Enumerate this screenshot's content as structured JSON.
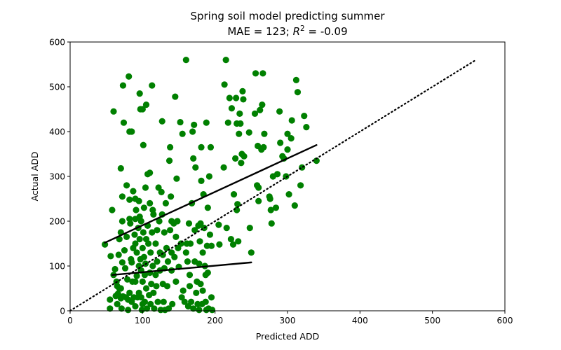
{
  "chart_data": {
    "type": "scatter",
    "title": "Spring soil model predicting summer",
    "subtitle_prefix": "MAE = 123; ",
    "subtitle_r": "R",
    "subtitle_sup": "2",
    "subtitle_suffix": " = -0.09",
    "xlabel": "Predicted ADD",
    "ylabel": "Actual ADD",
    "xlim": [
      0,
      600
    ],
    "ylim": [
      0,
      600
    ],
    "xticks": [
      0,
      100,
      200,
      300,
      400,
      500,
      600
    ],
    "yticks": [
      0,
      100,
      200,
      300,
      400,
      500,
      600
    ],
    "grid": false,
    "point_color": "#008000",
    "line_color": "#000000",
    "identity_line": {
      "style": "dotted",
      "points": [
        [
          0,
          0
        ],
        [
          560,
          560
        ]
      ]
    },
    "fit_lines": [
      {
        "style": "solid",
        "points": [
          [
            48,
            152
          ],
          [
            340,
            370
          ]
        ]
      },
      {
        "style": "solid",
        "points": [
          [
            58,
            80
          ],
          [
            250,
            108
          ]
        ]
      }
    ],
    "points": [
      [
        48,
        148
      ],
      [
        55,
        25
      ],
      [
        55,
        5
      ],
      [
        56,
        122
      ],
      [
        58,
        225
      ],
      [
        60,
        445
      ],
      [
        60,
        80
      ],
      [
        62,
        93
      ],
      [
        63,
        33
      ],
      [
        64,
        65
      ],
      [
        65,
        55
      ],
      [
        65,
        15
      ],
      [
        66,
        38
      ],
      [
        67,
        125
      ],
      [
        68,
        160
      ],
      [
        68,
        50
      ],
      [
        70,
        318
      ],
      [
        70,
        175
      ],
      [
        70,
        50
      ],
      [
        70,
        28
      ],
      [
        71,
        5
      ],
      [
        72,
        255
      ],
      [
        72,
        200
      ],
      [
        72,
        108
      ],
      [
        73,
        32
      ],
      [
        73,
        503
      ],
      [
        74,
        420
      ],
      [
        75,
        135
      ],
      [
        76,
        95
      ],
      [
        77,
        30
      ],
      [
        78,
        280
      ],
      [
        78,
        165
      ],
      [
        79,
        70
      ],
      [
        80,
        2
      ],
      [
        80,
        25
      ],
      [
        81,
        523
      ],
      [
        82,
        400
      ],
      [
        82,
        248
      ],
      [
        82,
        205
      ],
      [
        82,
        40
      ],
      [
        83,
        195
      ],
      [
        84,
        115
      ],
      [
        85,
        20
      ],
      [
        85,
        400
      ],
      [
        85,
        108
      ],
      [
        86,
        65
      ],
      [
        87,
        267
      ],
      [
        87,
        140
      ],
      [
        88,
        30
      ],
      [
        89,
        170
      ],
      [
        90,
        250
      ],
      [
        90,
        205
      ],
      [
        90,
        150
      ],
      [
        90,
        65
      ],
      [
        90,
        10
      ],
      [
        91,
        225
      ],
      [
        92,
        130
      ],
      [
        92,
        78
      ],
      [
        93,
        30
      ],
      [
        94,
        185
      ],
      [
        95,
        245
      ],
      [
        95,
        100
      ],
      [
        95,
        40
      ],
      [
        96,
        485
      ],
      [
        96,
        210
      ],
      [
        96,
        160
      ],
      [
        97,
        450
      ],
      [
        97,
        115
      ],
      [
        98,
        200
      ],
      [
        98,
        90
      ],
      [
        98,
        30
      ],
      [
        99,
        2
      ],
      [
        100,
        450
      ],
      [
        100,
        140
      ],
      [
        100,
        65
      ],
      [
        100,
        15
      ],
      [
        101,
        370
      ],
      [
        101,
        175
      ],
      [
        102,
        230
      ],
      [
        102,
        120
      ],
      [
        103,
        80
      ],
      [
        103,
        20
      ],
      [
        104,
        275
      ],
      [
        104,
        105
      ],
      [
        105,
        460
      ],
      [
        105,
        160
      ],
      [
        105,
        50
      ],
      [
        106,
        5
      ],
      [
        107,
        305
      ],
      [
        107,
        190
      ],
      [
        108,
        150
      ],
      [
        109,
        35
      ],
      [
        110,
        240
      ],
      [
        110,
        85
      ],
      [
        110,
        308
      ],
      [
        111,
        130
      ],
      [
        111,
        15
      ],
      [
        112,
        60
      ],
      [
        113,
        175
      ],
      [
        113,
        503
      ],
      [
        114,
        225
      ],
      [
        114,
        100
      ],
      [
        115,
        215
      ],
      [
        115,
        40
      ],
      [
        116,
        5
      ],
      [
        118,
        150
      ],
      [
        118,
        80
      ],
      [
        119,
        55
      ],
      [
        120,
        180
      ],
      [
        120,
        110
      ],
      [
        121,
        20
      ],
      [
        122,
        275
      ],
      [
        123,
        200
      ],
      [
        124,
        130
      ],
      [
        124,
        90
      ],
      [
        125,
        2
      ],
      [
        126,
        265
      ],
      [
        127,
        423
      ],
      [
        127,
        215
      ],
      [
        128,
        125
      ],
      [
        128,
        60
      ],
      [
        129,
        20
      ],
      [
        130,
        175
      ],
      [
        130,
        95
      ],
      [
        131,
        2
      ],
      [
        132,
        240
      ],
      [
        133,
        140
      ],
      [
        134,
        55
      ],
      [
        135,
        110
      ],
      [
        136,
        5
      ],
      [
        137,
        335
      ],
      [
        138,
        365
      ],
      [
        138,
        180
      ],
      [
        139,
        255
      ],
      [
        140,
        200
      ],
      [
        140,
        130
      ],
      [
        140,
        90
      ],
      [
        141,
        15
      ],
      [
        143,
        195
      ],
      [
        144,
        120
      ],
      [
        145,
        478
      ],
      [
        146,
        165
      ],
      [
        146,
        65
      ],
      [
        147,
        295
      ],
      [
        148,
        200
      ],
      [
        149,
        140
      ],
      [
        150,
        98
      ],
      [
        152,
        421
      ],
      [
        153,
        150
      ],
      [
        154,
        30
      ],
      [
        155,
        395
      ],
      [
        156,
        45
      ],
      [
        158,
        20
      ],
      [
        160,
        560
      ],
      [
        160,
        130
      ],
      [
        161,
        150
      ],
      [
        162,
        110
      ],
      [
        163,
        10
      ],
      [
        164,
        195
      ],
      [
        165,
        55
      ],
      [
        165,
        80
      ],
      [
        166,
        150
      ],
      [
        167,
        20
      ],
      [
        168,
        240
      ],
      [
        169,
        400
      ],
      [
        170,
        5
      ],
      [
        170,
        340
      ],
      [
        171,
        415
      ],
      [
        172,
        180
      ],
      [
        172,
        110
      ],
      [
        173,
        320
      ],
      [
        174,
        40
      ],
      [
        175,
        65
      ],
      [
        176,
        15
      ],
      [
        177,
        190
      ],
      [
        178,
        105
      ],
      [
        178,
        2
      ],
      [
        179,
        155
      ],
      [
        180,
        195
      ],
      [
        180,
        60
      ],
      [
        181,
        290
      ],
      [
        181,
        365
      ],
      [
        182,
        15
      ],
      [
        183,
        130
      ],
      [
        183,
        45
      ],
      [
        184,
        260
      ],
      [
        185,
        185
      ],
      [
        186,
        100
      ],
      [
        187,
        80
      ],
      [
        187,
        20
      ],
      [
        188,
        420
      ],
      [
        188,
        2
      ],
      [
        189,
        145
      ],
      [
        190,
        230
      ],
      [
        190,
        85
      ],
      [
        191,
        5
      ],
      [
        192,
        300
      ],
      [
        193,
        170
      ],
      [
        194,
        365
      ],
      [
        195,
        145
      ],
      [
        195,
        30
      ],
      [
        196,
        2
      ],
      [
        205,
        192
      ],
      [
        206,
        148
      ],
      [
        212,
        320
      ],
      [
        213,
        505
      ],
      [
        215,
        560
      ],
      [
        216,
        185
      ],
      [
        218,
        420
      ],
      [
        220,
        475
      ],
      [
        222,
        160
      ],
      [
        223,
        452
      ],
      [
        225,
        148
      ],
      [
        226,
        260
      ],
      [
        228,
        340
      ],
      [
        229,
        475
      ],
      [
        230,
        225
      ],
      [
        230,
        418
      ],
      [
        231,
        238
      ],
      [
        232,
        155
      ],
      [
        233,
        395
      ],
      [
        234,
        440
      ],
      [
        235,
        418
      ],
      [
        236,
        330
      ],
      [
        237,
        350
      ],
      [
        238,
        490
      ],
      [
        239,
        472
      ],
      [
        240,
        345
      ],
      [
        247,
        398
      ],
      [
        248,
        185
      ],
      [
        250,
        130
      ],
      [
        255,
        440
      ],
      [
        256,
        530
      ],
      [
        258,
        280
      ],
      [
        259,
        368
      ],
      [
        260,
        275
      ],
      [
        260,
        245
      ],
      [
        262,
        448
      ],
      [
        264,
        360
      ],
      [
        265,
        460
      ],
      [
        266,
        530
      ],
      [
        267,
        365
      ],
      [
        268,
        395
      ],
      [
        275,
        255
      ],
      [
        276,
        250
      ],
      [
        277,
        225
      ],
      [
        278,
        195
      ],
      [
        280,
        300
      ],
      [
        284,
        230
      ],
      [
        286,
        305
      ],
      [
        289,
        445
      ],
      [
        290,
        375
      ],
      [
        293,
        345
      ],
      [
        295,
        340
      ],
      [
        298,
        300
      ],
      [
        300,
        395
      ],
      [
        300,
        360
      ],
      [
        302,
        260
      ],
      [
        305,
        385
      ],
      [
        306,
        425
      ],
      [
        310,
        235
      ],
      [
        312,
        515
      ],
      [
        314,
        488
      ],
      [
        318,
        280
      ],
      [
        320,
        320
      ],
      [
        323,
        435
      ],
      [
        326,
        410
      ],
      [
        340,
        335
      ]
    ]
  }
}
